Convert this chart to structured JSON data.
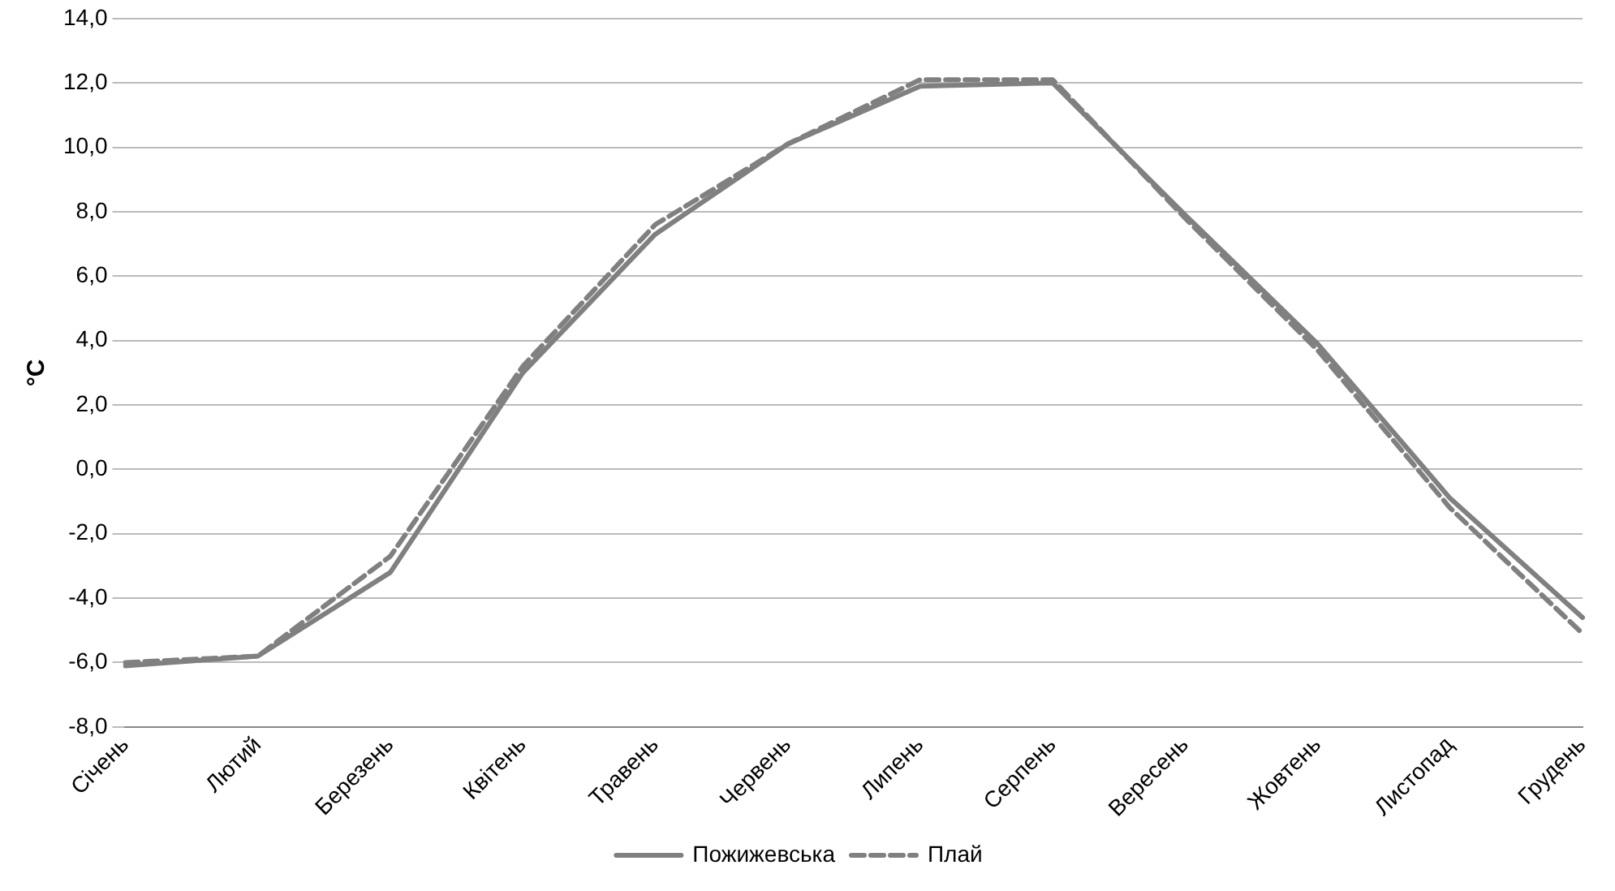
{
  "chart_data": {
    "type": "line",
    "ylabel": "°C",
    "categories": [
      "Січень",
      "Лютий",
      "Березень",
      "Квітень",
      "Травень",
      "Червень",
      "Липень",
      "Серпень",
      "Вересень",
      "Жовтень",
      "Листопад",
      "Грудень"
    ],
    "series": [
      {
        "name": "Пожижевська",
        "color": "#808080",
        "line_style": "solid",
        "values": [
          -6.1,
          -5.8,
          -3.2,
          3.0,
          7.3,
          10.1,
          11.9,
          12.0,
          7.9,
          3.9,
          -0.9,
          -4.6
        ]
      },
      {
        "name": "Плай",
        "color": "#808080",
        "line_style": "dashed",
        "values": [
          -6.0,
          -5.8,
          -2.7,
          3.2,
          7.6,
          10.1,
          12.1,
          12.1,
          7.8,
          3.7,
          -1.2,
          -5.1
        ]
      }
    ],
    "ylim": [
      -8,
      14
    ],
    "yticks": [
      {
        "value": -8,
        "label": "-8,0"
      },
      {
        "value": -6,
        "label": "-6,0"
      },
      {
        "value": -4,
        "label": "-4,0"
      },
      {
        "value": -2,
        "label": "-2,0"
      },
      {
        "value": 0,
        "label": "0,0"
      },
      {
        "value": 2,
        "label": "2,0"
      },
      {
        "value": 4,
        "label": "4,0"
      },
      {
        "value": 6,
        "label": "6,0"
      },
      {
        "value": 8,
        "label": "8,0"
      },
      {
        "value": 10,
        "label": "10,0"
      },
      {
        "value": 12,
        "label": "12,0"
      },
      {
        "value": 14,
        "label": "14,0"
      }
    ],
    "grid": "y",
    "legend": "bottom",
    "marker": "none"
  }
}
